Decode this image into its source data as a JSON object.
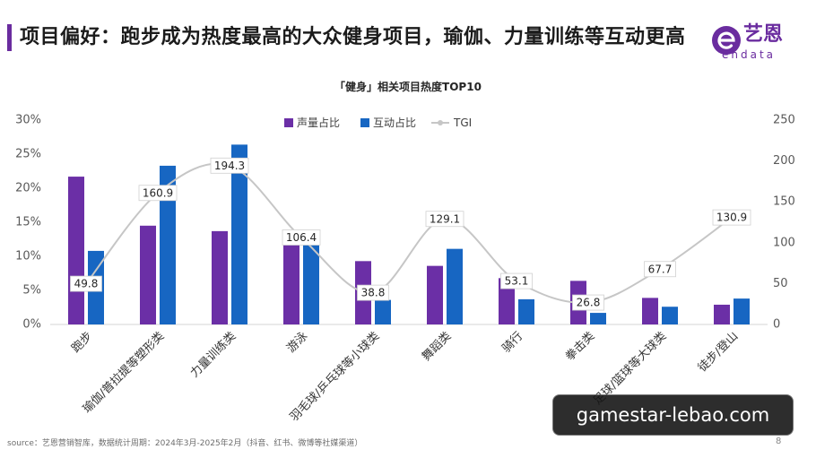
{
  "header": {
    "title": "项目偏好：跑步成为热度最高的大众健身项目，瑜伽、力量训练等互动更高",
    "accent_color": "#6a2c9f",
    "logo": {
      "icon": "endata-e-logo-icon",
      "name_cn": "艺恩",
      "name_en": "endata"
    }
  },
  "chart_data": {
    "type": "bar",
    "title": "「健身」相关项目热度TOP10",
    "categories": [
      "跑步",
      "瑜伽/普拉提等塑形类",
      "力量训练类",
      "游泳",
      "羽毛球/乒乓球等小球类",
      "舞蹈类",
      "骑行",
      "拳击类",
      "足球/篮球等大球类",
      "徒步/登山"
    ],
    "series": [
      {
        "name": "声量占比",
        "type": "bar",
        "axis": "left",
        "color": "#6b2fa6",
        "values": [
          21.7,
          14.5,
          13.7,
          11.9,
          9.3,
          8.6,
          6.8,
          6.4,
          3.9,
          2.9
        ]
      },
      {
        "name": "互动占比",
        "type": "bar",
        "axis": "left",
        "color": "#1766c2",
        "values": [
          10.8,
          23.3,
          26.4,
          11.8,
          3.6,
          11.1,
          3.7,
          1.7,
          2.6,
          3.8
        ]
      },
      {
        "name": "TGI",
        "type": "line",
        "axis": "right",
        "smooth": true,
        "data_labels": true,
        "color": "#c6c6c6",
        "values": [
          49.8,
          160.9,
          194.3,
          106.4,
          38.8,
          129.1,
          53.1,
          26.8,
          67.7,
          130.9
        ]
      }
    ],
    "y_left": {
      "range": [
        0,
        30
      ],
      "ticks": [
        0,
        5,
        10,
        15,
        20,
        25,
        30
      ],
      "tick_labels": [
        "0%",
        "5%",
        "10%",
        "15%",
        "20%",
        "25%",
        "30%"
      ]
    },
    "y_right": {
      "range": [
        0,
        250
      ],
      "ticks": [
        0,
        50,
        100,
        150,
        200,
        250
      ],
      "tick_labels": [
        "0",
        "50",
        "100",
        "150",
        "200",
        "250"
      ]
    },
    "legend": "top-center",
    "grid": false
  },
  "footer": {
    "source": "source：艺恩营销智库，数据统计周期：2024年3月-2025年2月（抖音、红书、微博等社媒渠道）",
    "page_number": "8"
  },
  "watermark": {
    "text": "gamestar-lebao.com"
  }
}
